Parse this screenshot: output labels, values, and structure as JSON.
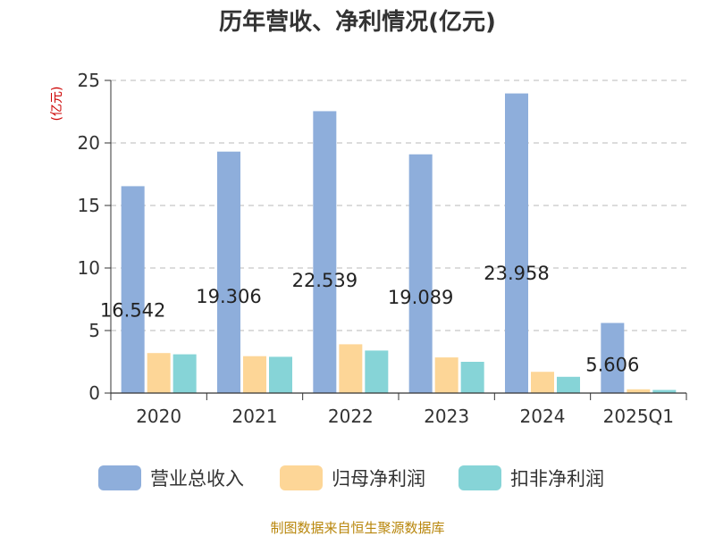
{
  "chart_data": {
    "type": "bar",
    "title": "历年营收、净利情况(亿元)",
    "ylabel": "(亿元)",
    "xlabel": "",
    "ylim": [
      0,
      25
    ],
    "yticks": [
      0,
      5,
      10,
      15,
      20,
      25
    ],
    "grid": true,
    "legend_position": "bottom",
    "categories": [
      "2020",
      "2021",
      "2022",
      "2023",
      "2024",
      "2025Q1"
    ],
    "series": [
      {
        "name": "营业总收入",
        "color": "#8eaedb",
        "values": [
          16.542,
          19.306,
          22.539,
          19.089,
          23.958,
          5.606
        ],
        "labels": [
          "16.542",
          "19.306",
          "22.539",
          "19.089",
          "23.958",
          "5.606"
        ]
      },
      {
        "name": "归母净利润",
        "color": "#fdd697",
        "values": [
          3.2,
          2.95,
          3.9,
          2.85,
          1.7,
          0.3
        ]
      },
      {
        "name": "扣非净利润",
        "color": "#86d4d7",
        "values": [
          3.1,
          2.9,
          3.4,
          2.5,
          1.3,
          0.25
        ]
      }
    ]
  },
  "source_text": "制图数据来自恒生聚源数据库"
}
